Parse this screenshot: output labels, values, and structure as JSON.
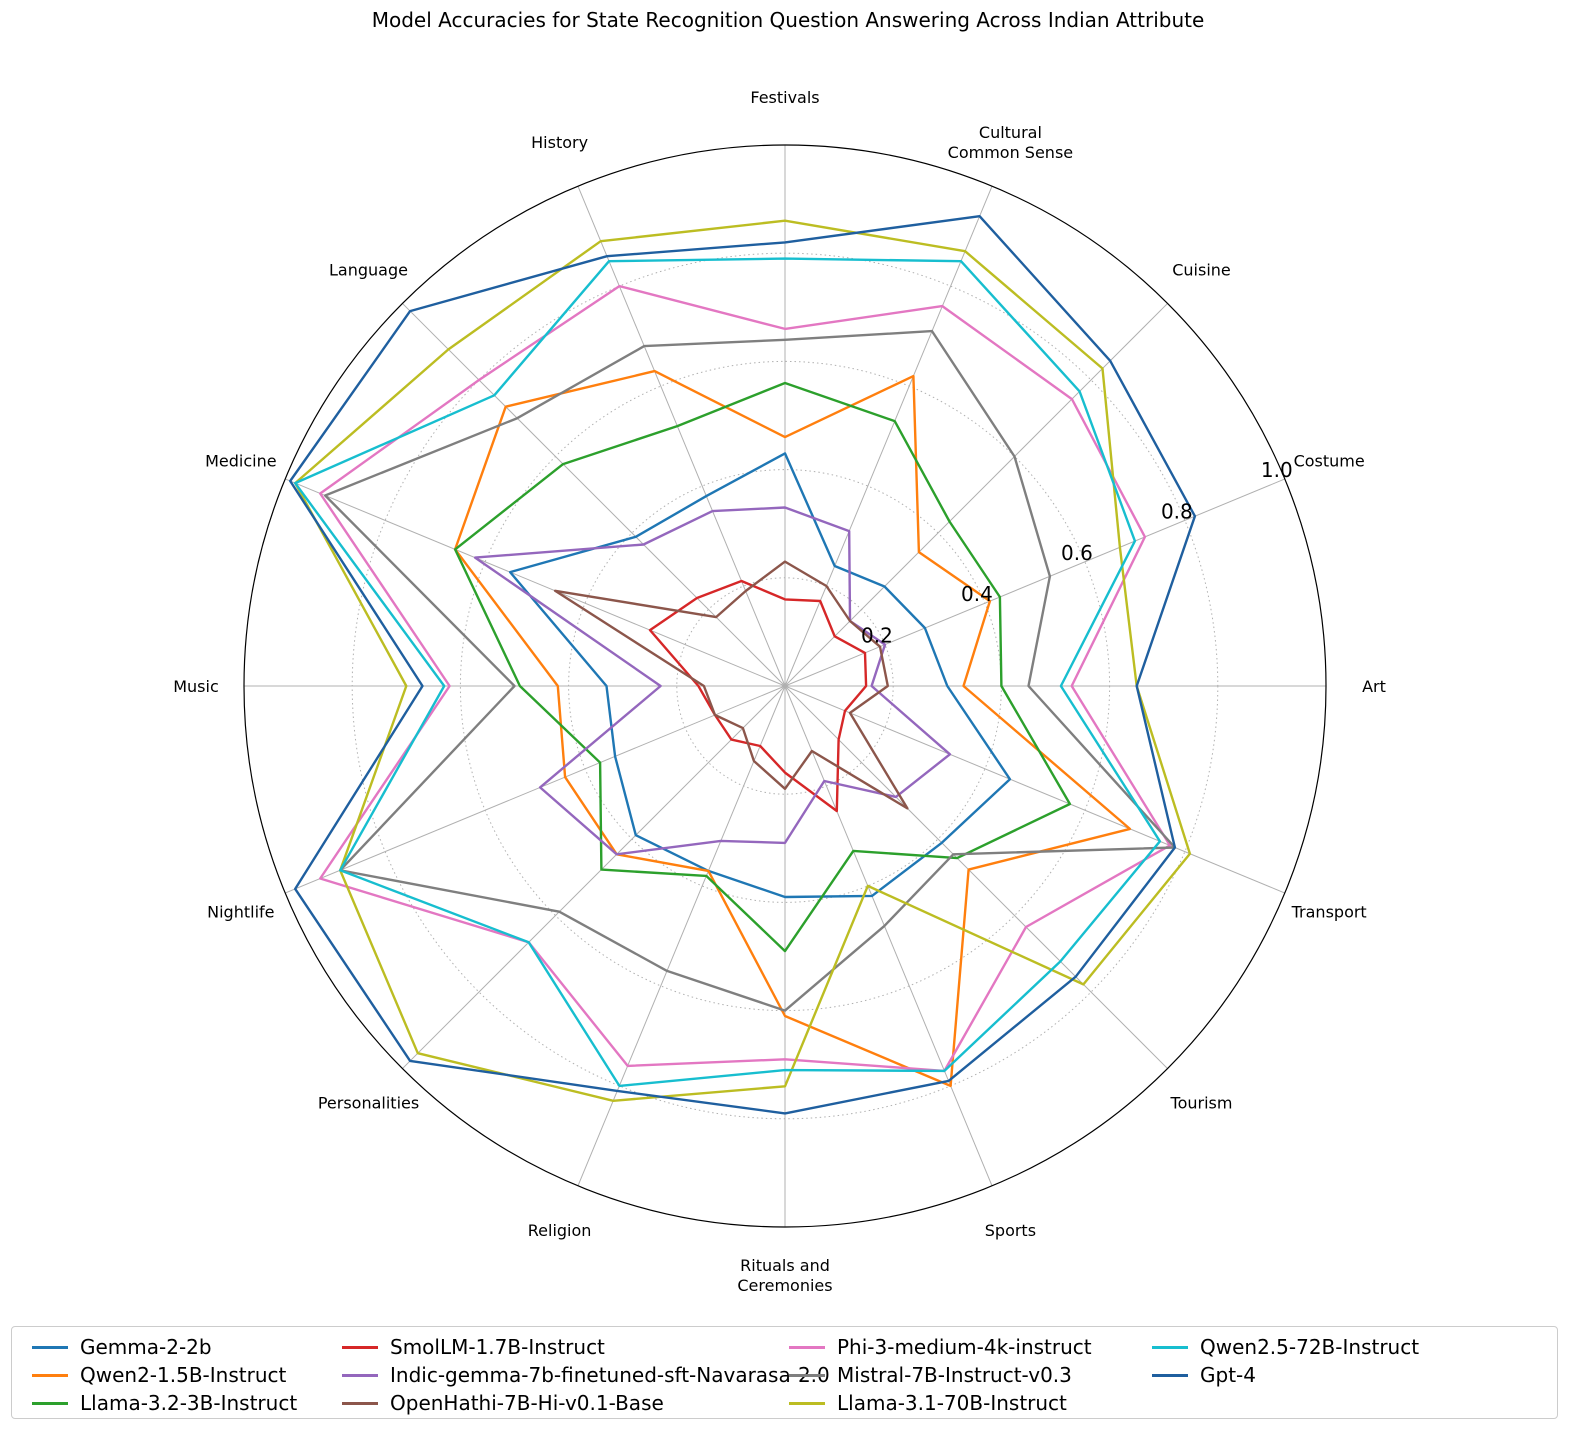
{
  "chart_data": {
    "type": "radar",
    "title": "Model Accuracies for State Recognition Question Answering Across Indian Attribute",
    "categories": [
      "Art",
      "Costume",
      "Cuisine",
      "Cultural\nCommon Sense",
      "Festivals",
      "History",
      "Language",
      "Medicine",
      "Music",
      "Nightlife",
      "Personalities",
      "Religion",
      "Rituals and\nCeremonies",
      "Sports",
      "Tourism",
      "Transport"
    ],
    "rlim": [
      0,
      1.0
    ],
    "rticks": [
      0.2,
      0.4,
      0.6,
      0.8,
      1.0
    ],
    "rtick_labels": [
      "0.2",
      "0.4",
      "0.6",
      "0.8",
      "1.0"
    ],
    "grid": true,
    "legend_position": "bottom",
    "series": [
      {
        "name": "Gemma-2-2b",
        "color": "#1f77b4",
        "values": [
          0.3,
          0.28,
          0.26,
          0.24,
          0.43,
          0.38,
          0.39,
          0.55,
          0.33,
          0.34,
          0.39,
          0.37,
          0.39,
          0.42,
          0.41,
          0.45
        ]
      },
      {
        "name": "Qwen2-1.5B-Instruct",
        "color": "#ff7f0e",
        "values": [
          0.33,
          0.41,
          0.35,
          0.62,
          0.46,
          0.63,
          0.73,
          0.66,
          0.42,
          0.44,
          0.44,
          0.37,
          0.61,
          0.8,
          0.48,
          0.69
        ]
      },
      {
        "name": "Llama-3.2-3B-Instruct",
        "color": "#2ca02c",
        "values": [
          0.4,
          0.43,
          0.43,
          0.53,
          0.56,
          0.52,
          0.58,
          0.66,
          0.49,
          0.37,
          0.48,
          0.38,
          0.49,
          0.33,
          0.45,
          0.57
        ]
      },
      {
        "name": "SmolLM-1.7B-Instruct",
        "color": "#d62728",
        "values": [
          0.15,
          0.16,
          0.13,
          0.17,
          0.16,
          0.21,
          0.23,
          0.27,
          0.16,
          0.14,
          0.14,
          0.12,
          0.16,
          0.25,
          0.14,
          0.12
        ]
      },
      {
        "name": "Indic-gemma-7b-finetuned-sft-Navarasa-2.0",
        "color": "#9467bd",
        "values": [
          0.16,
          0.2,
          0.17,
          0.31,
          0.33,
          0.35,
          0.37,
          0.62,
          0.23,
          0.49,
          0.44,
          0.31,
          0.29,
          0.19,
          0.29,
          0.33
        ]
      },
      {
        "name": "OpenHathi-7B-Hi-v0.1-Base",
        "color": "#8c564b",
        "values": [
          0.19,
          0.19,
          0.17,
          0.2,
          0.23,
          0.19,
          0.18,
          0.46,
          0.15,
          0.14,
          0.11,
          0.15,
          0.19,
          0.13,
          0.32,
          0.13
        ]
      },
      {
        "name": "Phi-3-medium-4k-instruct",
        "color": "#e377c2",
        "values": [
          0.53,
          0.72,
          0.75,
          0.76,
          0.66,
          0.8,
          0.8,
          0.93,
          0.62,
          0.93,
          0.67,
          0.76,
          0.69,
          0.77,
          0.63,
          0.77
        ]
      },
      {
        "name": "Mistral-7B-Instruct-v0.3",
        "color": "#7f7f7f",
        "values": [
          0.45,
          0.53,
          0.6,
          0.71,
          0.64,
          0.68,
          0.7,
          0.92,
          0.5,
          0.89,
          0.59,
          0.57,
          0.6,
          0.48,
          0.44,
          0.78
        ]
      },
      {
        "name": "Llama-3.1-70B-Instruct",
        "color": "#bcbd22",
        "values": [
          0.65,
          0.67,
          0.83,
          0.87,
          0.86,
          0.89,
          0.88,
          0.98,
          0.7,
          0.89,
          0.96,
          0.83,
          0.74,
          0.4,
          0.78,
          0.81
        ]
      },
      {
        "name": "Qwen2.5-72B-Instruct",
        "color": "#17becf",
        "values": [
          0.51,
          0.7,
          0.77,
          0.85,
          0.79,
          0.85,
          0.76,
          0.98,
          0.63,
          0.89,
          0.67,
          0.8,
          0.71,
          0.77,
          0.72,
          0.75
        ]
      },
      {
        "name": "Gpt-4",
        "color": "#1f5f9f",
        "values": [
          0.65,
          0.82,
          0.85,
          0.94,
          0.82,
          0.86,
          0.98,
          0.99,
          0.67,
          0.98,
          0.98,
          0.81,
          0.79,
          0.79,
          0.76,
          0.78
        ]
      }
    ]
  }
}
